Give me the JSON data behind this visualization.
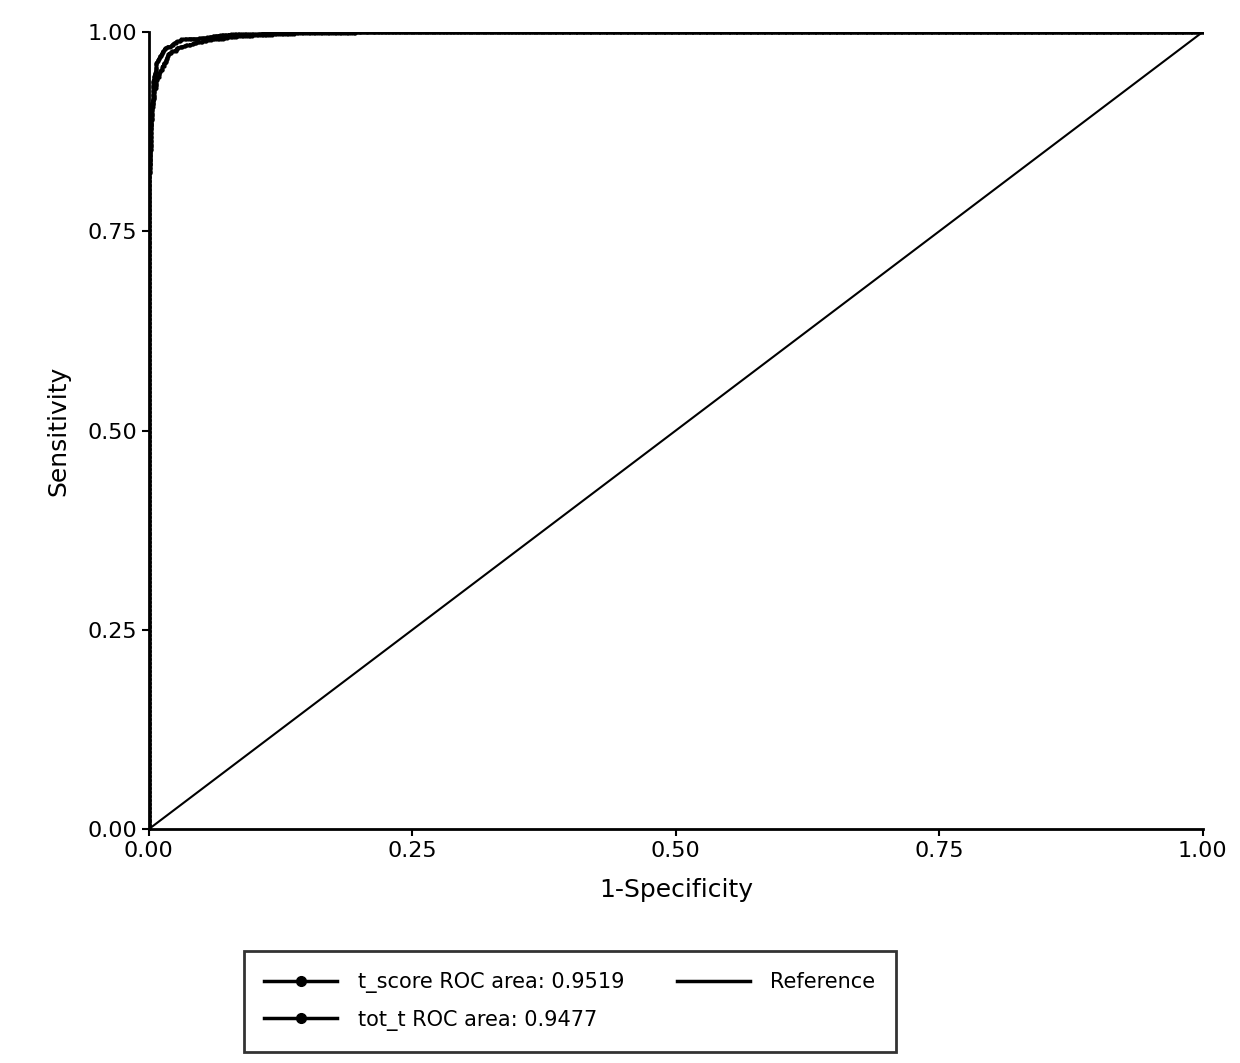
{
  "title": "",
  "xlabel": "1-Specificity",
  "ylabel": "Sensitivity",
  "xlim": [
    0.0,
    1.0
  ],
  "ylim": [
    0.0,
    1.0
  ],
  "xticks": [
    0.0,
    0.25,
    0.5,
    0.75,
    1.0
  ],
  "yticks": [
    0.0,
    0.25,
    0.5,
    0.75,
    1.0
  ],
  "line_color": "#000000",
  "ref_color": "#000000",
  "legend_labels": [
    "t_score ROC area: 0.9519",
    "tot_t ROC area: 0.9477",
    "Reference"
  ],
  "auc_tscore": 0.9519,
  "auc_tott": 0.9477,
  "background_color": "#ffffff",
  "axis_label_fontsize": 18,
  "tick_fontsize": 16,
  "legend_fontsize": 15
}
